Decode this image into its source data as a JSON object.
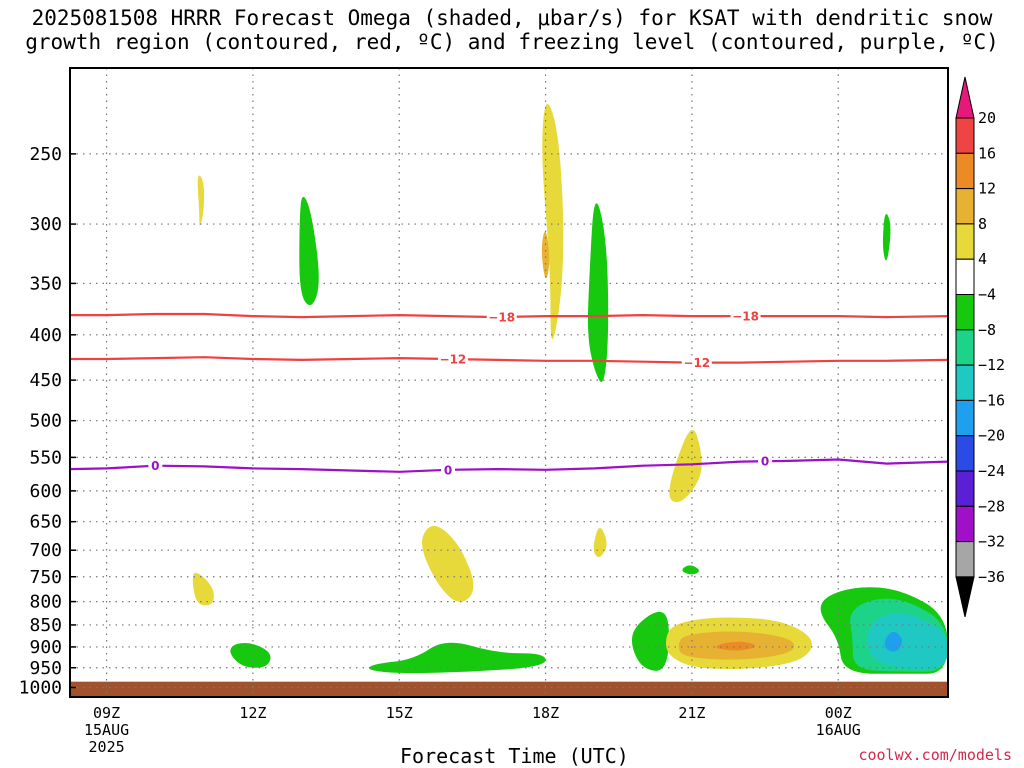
{
  "title": {
    "line1": "2025081508 HRRR Forecast Omega (shaded, μbar/s) for KSAT with dendritic snow",
    "line2": "growth region (contoured, red, ºC) and freezing level (contoured, purple, ºC)"
  },
  "credit": "coolwx.com/models",
  "chart_data": {
    "type": "heatmap",
    "xlabel": "Forecast Time (UTC)",
    "ylabel": "",
    "y_axis": {
      "unit": "mb",
      "ticks": [
        250,
        300,
        350,
        400,
        450,
        500,
        550,
        600,
        650,
        700,
        750,
        800,
        850,
        900,
        950,
        1000
      ],
      "range": [
        200,
        1025
      ],
      "scale": "log"
    },
    "x_axis": {
      "range_hours": [
        -0.75,
        17.25
      ],
      "ticks": [
        {
          "hour": 0,
          "label": "09Z",
          "sub": [
            "15AUG",
            "2025"
          ]
        },
        {
          "hour": 3,
          "label": "12Z",
          "sub": []
        },
        {
          "hour": 6,
          "label": "15Z",
          "sub": []
        },
        {
          "hour": 9,
          "label": "18Z",
          "sub": []
        },
        {
          "hour": 12,
          "label": "21Z",
          "sub": []
        },
        {
          "hour": 15,
          "label": "00Z",
          "sub": [
            "16AUG"
          ]
        }
      ],
      "grid": true
    },
    "colorbar": {
      "labels": [
        "20",
        "16",
        "12",
        "8",
        "4",
        "−4",
        "−8",
        "−12",
        "−16",
        "−20",
        "−24",
        "−28",
        "−32",
        "−36"
      ],
      "colors": [
        "#e6197a",
        "#ef4444",
        "#ec8a25",
        "#e7b232",
        "#e8d93a",
        "#ffffff",
        "#16c90e",
        "#1dd38a",
        "#20c8c4",
        "#1ea0ef",
        "#2b4be6",
        "#5b1fd6",
        "#a010c8",
        "#a6a6a6",
        "#000000"
      ]
    },
    "below_ground": {
      "from_mb": 985,
      "color": "#a0522d"
    },
    "contours": [
      {
        "name": "−18",
        "color": "#f04040",
        "points": [
          [
            -0.75,
            380
          ],
          [
            0,
            380
          ],
          [
            1,
            379
          ],
          [
            2,
            379
          ],
          [
            3,
            381
          ],
          [
            4,
            382
          ],
          [
            5,
            381
          ],
          [
            6,
            380
          ],
          [
            7,
            381
          ],
          [
            8,
            382
          ],
          [
            9,
            381
          ],
          [
            10,
            381
          ],
          [
            11,
            380
          ],
          [
            12,
            381
          ],
          [
            13,
            381
          ],
          [
            14,
            381
          ],
          [
            15,
            381
          ],
          [
            16,
            382
          ],
          [
            17.25,
            381
          ]
        ],
        "labels": [
          {
            "hour": 8.1,
            "text": "−18"
          },
          {
            "hour": 13.1,
            "text": "−18"
          }
        ]
      },
      {
        "name": "−12",
        "color": "#f04040",
        "points": [
          [
            -0.75,
            426
          ],
          [
            0,
            426
          ],
          [
            1,
            425
          ],
          [
            2,
            424
          ],
          [
            3,
            426
          ],
          [
            4,
            427
          ],
          [
            5,
            426
          ],
          [
            6,
            425
          ],
          [
            7,
            426
          ],
          [
            8,
            427
          ],
          [
            9,
            428
          ],
          [
            10,
            428
          ],
          [
            11,
            429
          ],
          [
            12,
            430
          ],
          [
            13,
            430
          ],
          [
            14,
            429
          ],
          [
            15,
            428
          ],
          [
            16,
            428
          ],
          [
            17.25,
            427
          ]
        ],
        "labels": [
          {
            "hour": 7.1,
            "text": "−12"
          },
          {
            "hour": 12.1,
            "text": "−12"
          }
        ]
      },
      {
        "name": "0",
        "color": "#9b10c8",
        "points": [
          [
            -0.75,
            567
          ],
          [
            0,
            566
          ],
          [
            1,
            562
          ],
          [
            2,
            563
          ],
          [
            3,
            566
          ],
          [
            4,
            567
          ],
          [
            5,
            569
          ],
          [
            6,
            571
          ],
          [
            7,
            568
          ],
          [
            8,
            567
          ],
          [
            9,
            568
          ],
          [
            10,
            566
          ],
          [
            11,
            562
          ],
          [
            12,
            560
          ],
          [
            13,
            556
          ],
          [
            14,
            555
          ],
          [
            15,
            553
          ],
          [
            16,
            559
          ],
          [
            17.25,
            556
          ]
        ],
        "labels": [
          {
            "hour": 1.0,
            "text": "0"
          },
          {
            "hour": 7.0,
            "text": "0"
          },
          {
            "hour": 13.5,
            "text": "0"
          }
        ]
      }
    ],
    "shaded_regions": [
      {
        "level": "4",
        "color": "#e8d93a",
        "points": [
          [
            9.1,
            335
          ],
          [
            8.9,
            250
          ],
          [
            9.0,
            212
          ],
          [
            9.3,
            240
          ],
          [
            9.4,
            340
          ],
          [
            9.1,
            430
          ]
        ]
      },
      {
        "level": "8",
        "color": "#e7b232",
        "points": [
          [
            9.0,
            300
          ],
          [
            9.1,
            330
          ],
          [
            9.0,
            352
          ],
          [
            8.9,
            320
          ]
        ]
      },
      {
        "level": "4",
        "color": "#e8d93a",
        "points": [
          [
            1.9,
            290
          ],
          [
            1.85,
            262
          ],
          [
            2.0,
            268
          ],
          [
            2.0,
            290
          ],
          [
            1.9,
            305
          ]
        ]
      },
      {
        "level": "-4",
        "color": "#16c90e",
        "points": [
          [
            4.0,
            275
          ],
          [
            4.2,
            290
          ],
          [
            4.4,
            350
          ],
          [
            4.2,
            375
          ],
          [
            3.95,
            360
          ],
          [
            3.95,
            300
          ]
        ]
      },
      {
        "level": "-4",
        "color": "#16c90e",
        "points": [
          [
            10.0,
            273
          ],
          [
            10.25,
            310
          ],
          [
            10.3,
            395
          ],
          [
            10.2,
            460
          ],
          [
            10.0,
            440
          ],
          [
            9.85,
            400
          ],
          [
            9.9,
            340
          ]
        ]
      },
      {
        "level": "-4",
        "color": "#16c90e",
        "points": [
          [
            15.95,
            288
          ],
          [
            16.1,
            300
          ],
          [
            16.0,
            335
          ],
          [
            15.9,
            320
          ]
        ]
      },
      {
        "level": "4",
        "color": "#e8d93a",
        "points": [
          [
            12.0,
            500
          ],
          [
            12.2,
            540
          ],
          [
            12.2,
            580
          ],
          [
            11.8,
            620
          ],
          [
            11.5,
            615
          ],
          [
            11.6,
            570
          ]
        ]
      },
      {
        "level": "4",
        "color": "#e8d93a",
        "points": [
          [
            10.1,
            650
          ],
          [
            10.3,
            690
          ],
          [
            10.1,
            718
          ],
          [
            9.95,
            700
          ]
        ]
      },
      {
        "level": "4",
        "color": "#e8d93a",
        "points": [
          [
            6.9,
            660
          ],
          [
            7.3,
            700
          ],
          [
            7.6,
            775
          ],
          [
            7.25,
            810
          ],
          [
            6.8,
            770
          ],
          [
            6.4,
            690
          ],
          [
            6.6,
            655
          ]
        ]
      },
      {
        "level": "4",
        "color": "#e8d93a",
        "points": [
          [
            1.8,
            735
          ],
          [
            2.2,
            770
          ],
          [
            2.2,
            808
          ],
          [
            1.85,
            808
          ],
          [
            1.75,
            760
          ]
        ]
      },
      {
        "level": "-4",
        "color": "#16c90e",
        "points": [
          [
            11.95,
            725
          ],
          [
            12.2,
            738
          ],
          [
            12.0,
            748
          ],
          [
            11.75,
            738
          ]
        ]
      },
      {
        "level": "-4",
        "color": "#16c90e",
        "points": [
          [
            2.6,
            892
          ],
          [
            3.0,
            890
          ],
          [
            3.4,
            915
          ],
          [
            3.3,
            950
          ],
          [
            2.8,
            950
          ],
          [
            2.5,
            915
          ]
        ]
      },
      {
        "level": "-4",
        "color": "#16c90e",
        "points": [
          [
            5.5,
            940
          ],
          [
            6.3,
            930
          ],
          [
            6.95,
            880
          ],
          [
            8.0,
            915
          ],
          [
            9.0,
            915
          ],
          [
            9.0,
            947
          ],
          [
            7.5,
            960
          ],
          [
            6.0,
            965
          ],
          [
            5.3,
            955
          ]
        ]
      },
      {
        "level": "-4",
        "color": "#16c90e",
        "points": [
          [
            10.8,
            855
          ],
          [
            11.3,
            815
          ],
          [
            11.55,
            835
          ],
          [
            11.5,
            960
          ],
          [
            11.0,
            955
          ],
          [
            10.75,
            900
          ]
        ]
      },
      {
        "level": "4",
        "color": "#e8d93a",
        "points": [
          [
            11.6,
            850
          ],
          [
            12.2,
            835
          ],
          [
            13.0,
            833
          ],
          [
            13.8,
            840
          ],
          [
            14.4,
            870
          ],
          [
            14.5,
            905
          ],
          [
            14.1,
            940
          ],
          [
            13.0,
            955
          ],
          [
            12.0,
            950
          ],
          [
            11.5,
            920
          ],
          [
            11.45,
            880
          ]
        ]
      },
      {
        "level": "8",
        "color": "#e7b232",
        "points": [
          [
            11.85,
            870
          ],
          [
            13.0,
            862
          ],
          [
            14.1,
            880
          ],
          [
            14.1,
            915
          ],
          [
            13.0,
            933
          ],
          [
            11.8,
            925
          ],
          [
            11.7,
            895
          ]
        ]
      },
      {
        "level": "12",
        "color": "#ec8a25",
        "points": [
          [
            12.5,
            895
          ],
          [
            13.0,
            885
          ],
          [
            13.4,
            898
          ],
          [
            13.0,
            910
          ],
          [
            12.5,
            905
          ]
        ]
      },
      {
        "level": "-4",
        "color": "#16c90e",
        "points": [
          [
            14.7,
            790
          ],
          [
            15.4,
            768
          ],
          [
            16.3,
            775
          ],
          [
            17.25,
            830
          ],
          [
            17.25,
            965
          ],
          [
            16.4,
            965
          ],
          [
            15.1,
            965
          ],
          [
            15.0,
            880
          ],
          [
            14.6,
            825
          ]
        ]
      },
      {
        "level": "-8",
        "color": "#1dd38a",
        "points": [
          [
            15.2,
            820
          ],
          [
            15.8,
            790
          ],
          [
            16.5,
            800
          ],
          [
            17.25,
            850
          ],
          [
            17.25,
            960
          ],
          [
            16.3,
            960
          ],
          [
            15.3,
            955
          ],
          [
            15.3,
            880
          ]
        ]
      },
      {
        "level": "-12",
        "color": "#20c8c4",
        "points": [
          [
            15.6,
            845
          ],
          [
            16.2,
            820
          ],
          [
            16.7,
            835
          ],
          [
            17.25,
            870
          ],
          [
            17.25,
            950
          ],
          [
            16.4,
            955
          ],
          [
            15.6,
            930
          ]
        ]
      },
      {
        "level": "-16",
        "color": "#1ea0ef",
        "points": [
          [
            15.95,
            880
          ],
          [
            16.15,
            860
          ],
          [
            16.35,
            885
          ],
          [
            16.2,
            915
          ],
          [
            15.95,
            905
          ]
        ]
      }
    ]
  }
}
